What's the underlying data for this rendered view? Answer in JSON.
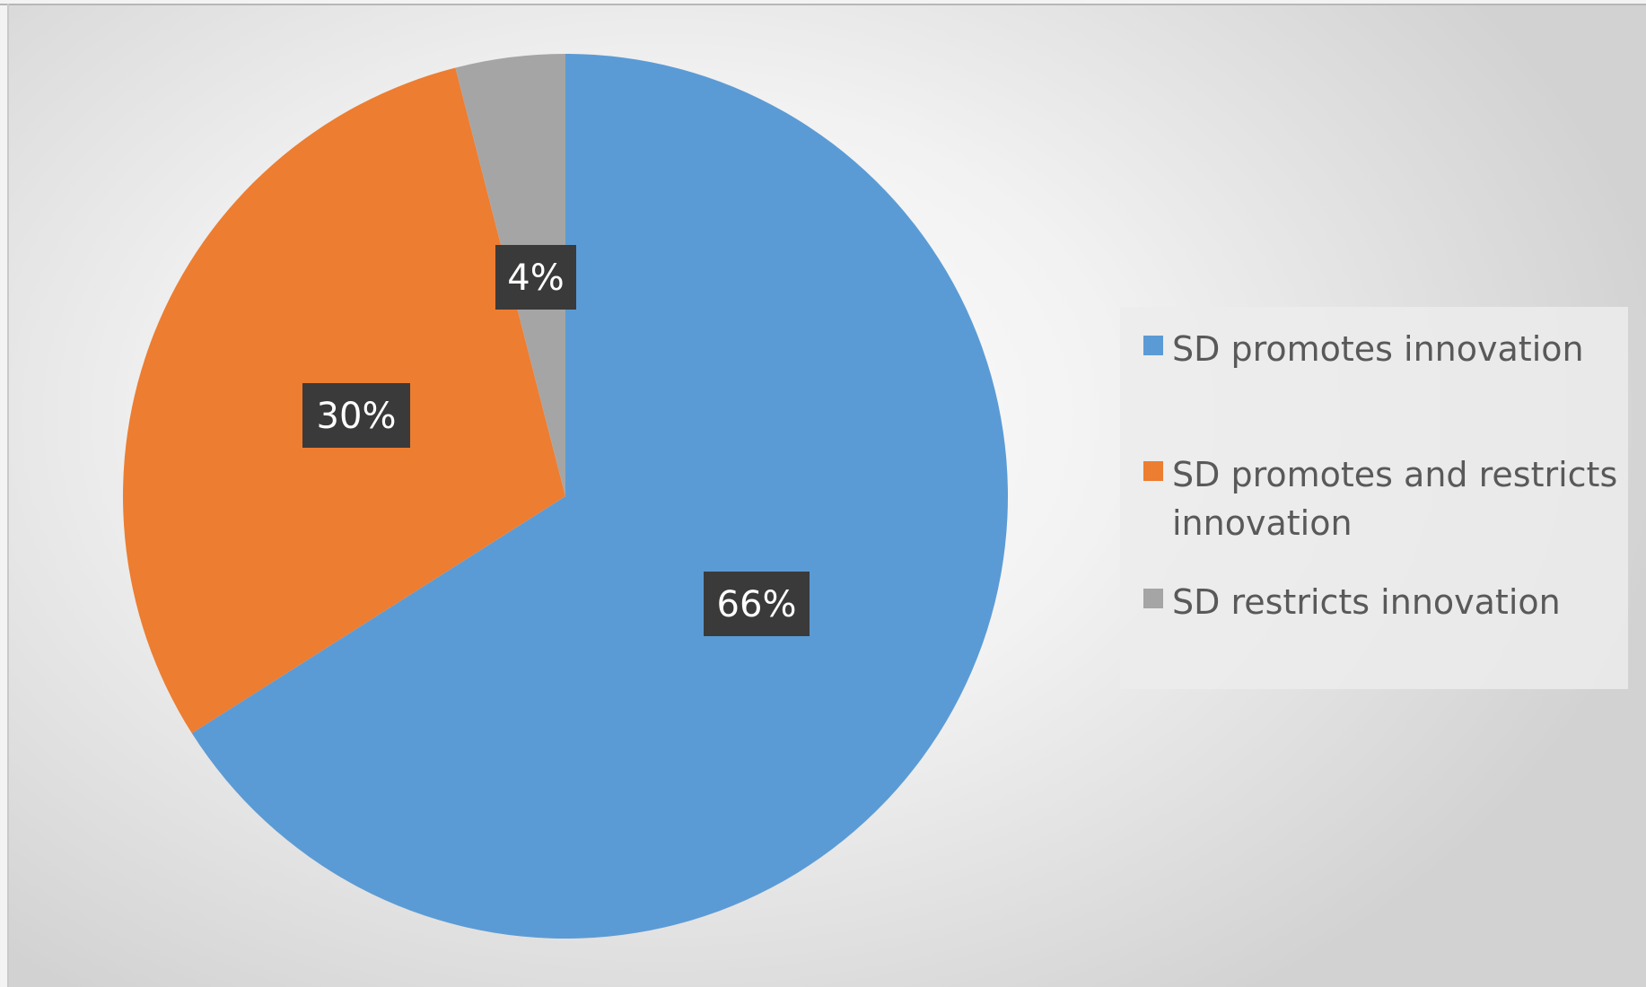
{
  "chart_data": {
    "type": "pie",
    "start_angle_deg": 0,
    "direction": "clockwise",
    "slices": [
      {
        "label": "SD promotes innovation",
        "value": 66,
        "data_label": "66%",
        "color": "#5b9bd5"
      },
      {
        "label": "SD promotes and restricts innovation",
        "value": 30,
        "data_label": "30%",
        "color": "#ed7d31"
      },
      {
        "label": "SD restricts innovation",
        "value": 4,
        "data_label": "4%",
        "color": "#a5a5a5"
      }
    ],
    "legend_position": "right"
  }
}
